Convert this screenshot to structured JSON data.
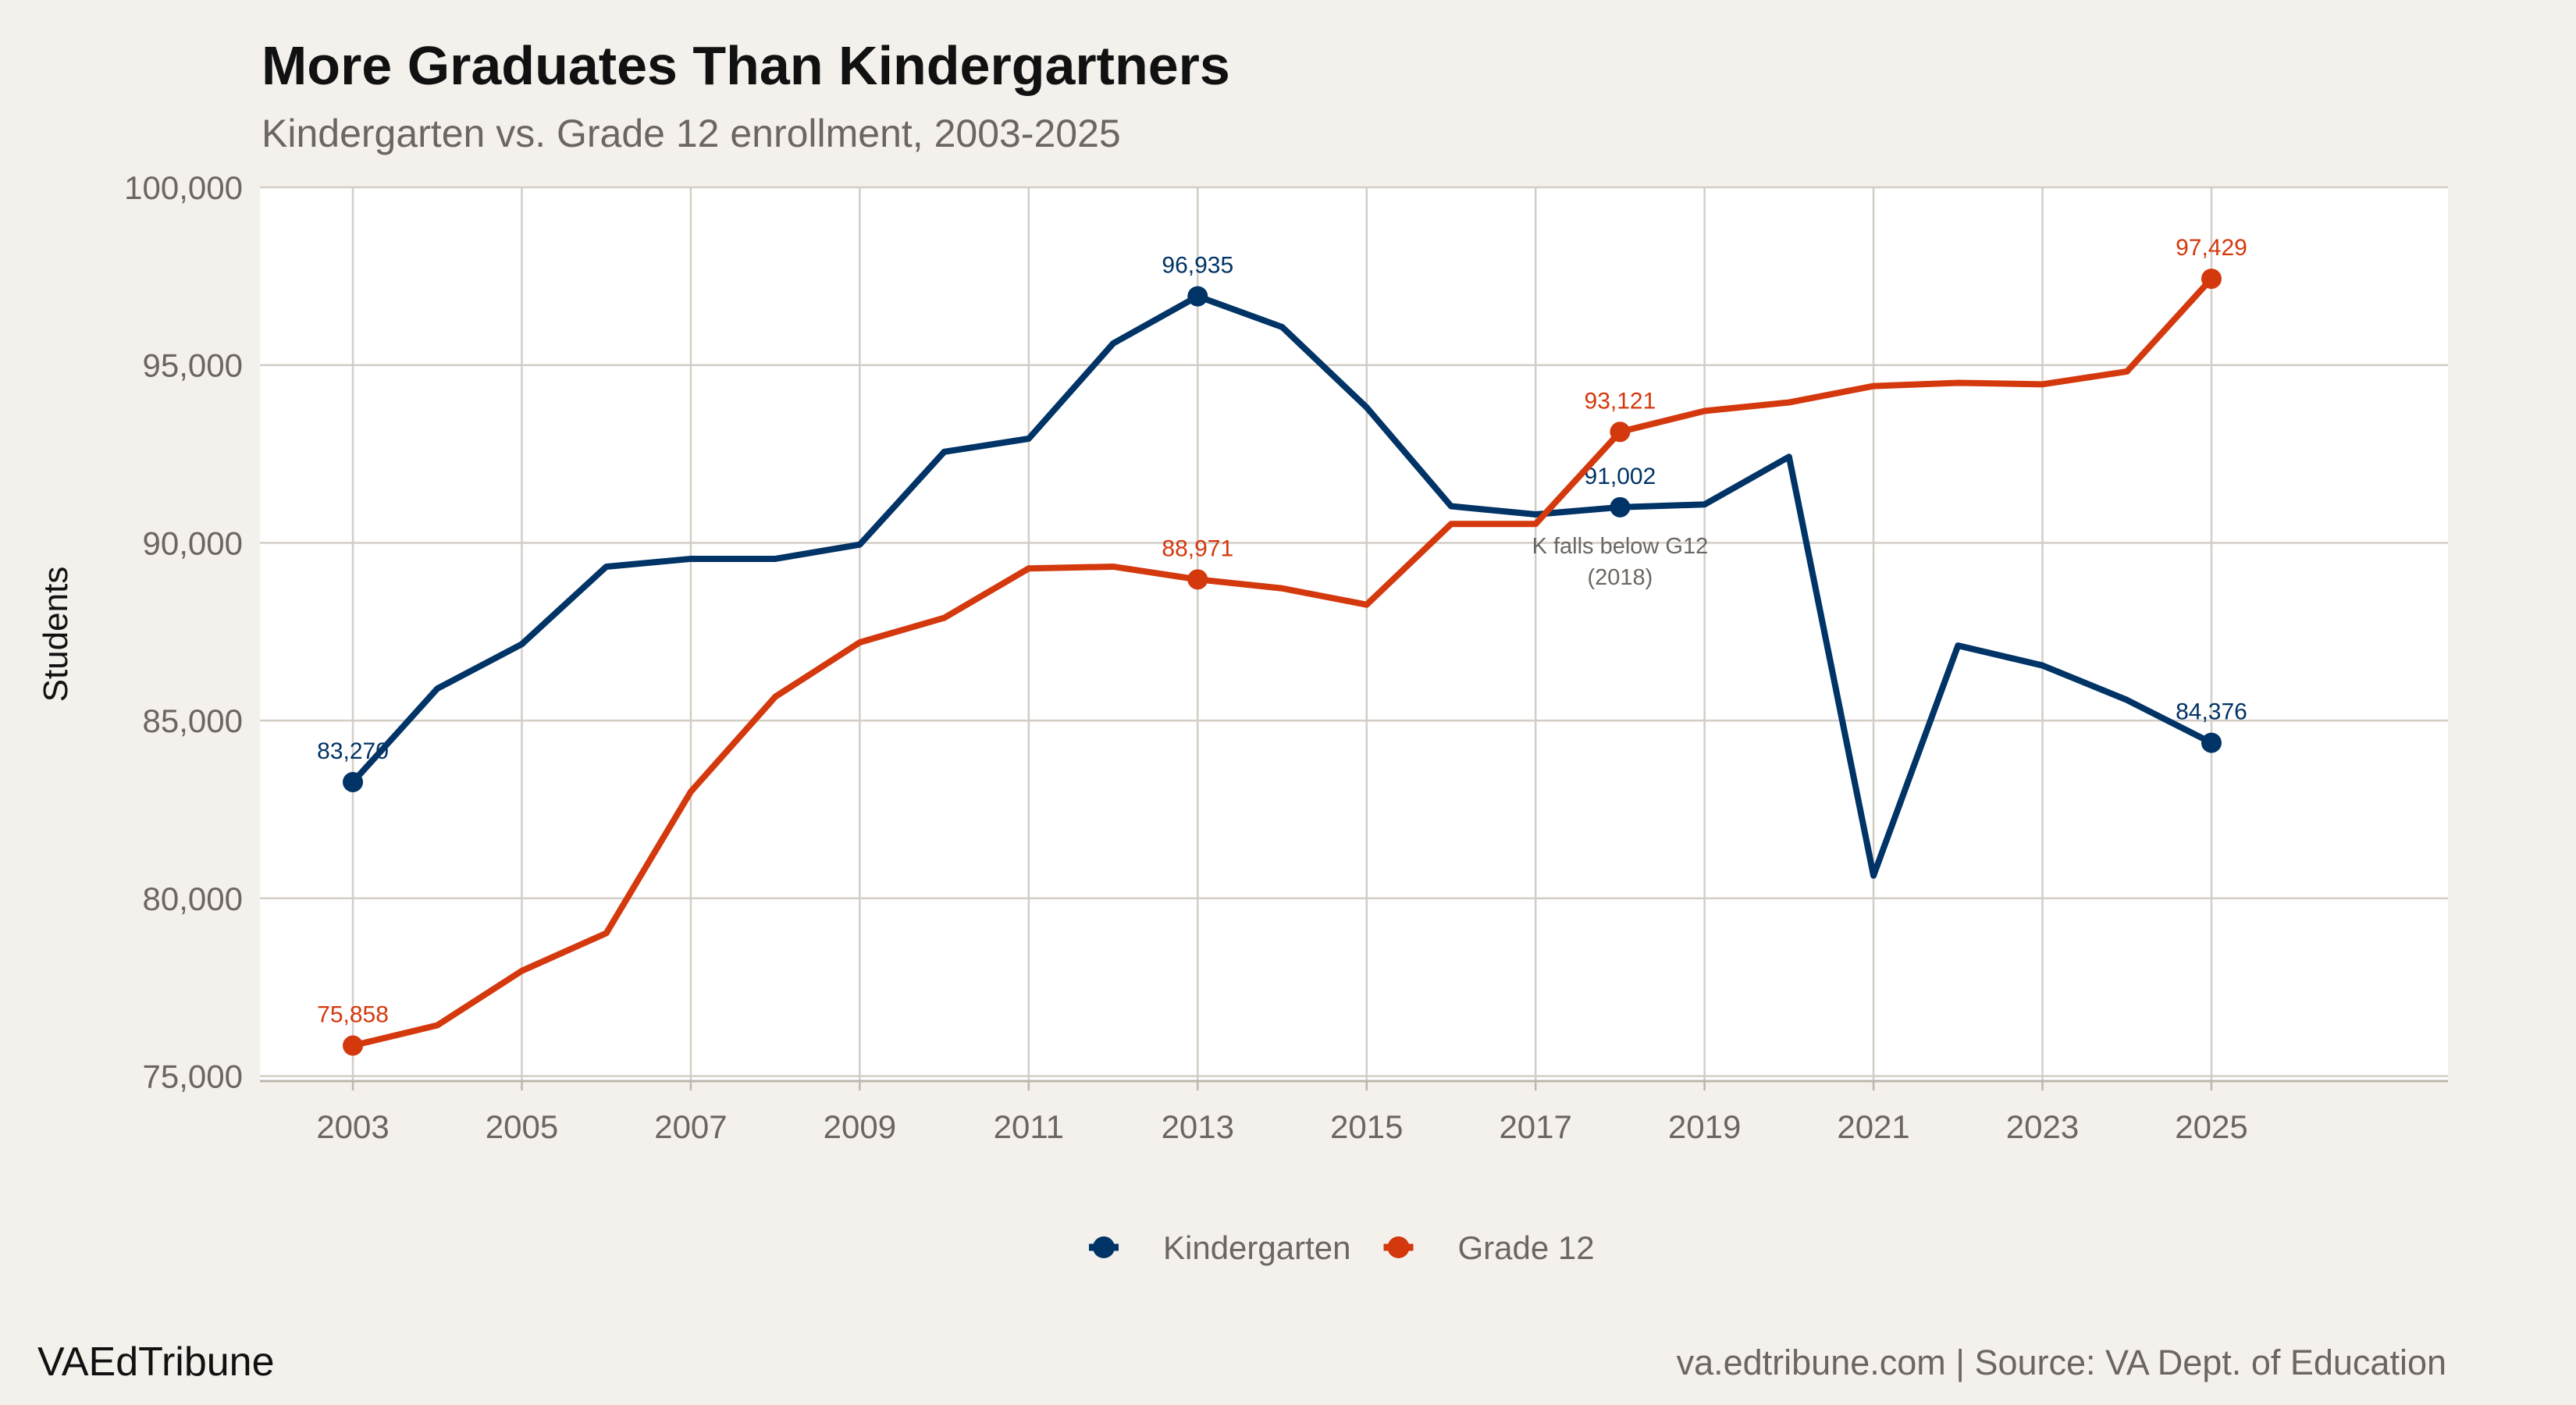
{
  "chart_data": {
    "type": "line",
    "title": "More Graduates Than Kindergartners",
    "subtitle": "Kindergarten vs. Grade 12 enrollment, 2003-2025",
    "xlabel": "",
    "ylabel": "Students",
    "xlim": [
      2001.9,
      2027.8
    ],
    "ylim": [
      74860,
      100000
    ],
    "xticks": [
      2003,
      2005,
      2007,
      2009,
      2011,
      2013,
      2015,
      2017,
      2019,
      2021,
      2023,
      2025
    ],
    "yticks": [
      75000,
      80000,
      85000,
      90000,
      95000,
      100000
    ],
    "ytick_labels": [
      "75,000",
      "80,000",
      "85,000",
      "90,000",
      "95,000",
      "100,000"
    ],
    "grid": true,
    "legend_position": "bottom",
    "x": [
      2003,
      2004,
      2005,
      2006,
      2007,
      2008,
      2009,
      2010,
      2011,
      2012,
      2013,
      2014,
      2015,
      2016,
      2017,
      2018,
      2019,
      2020,
      2021,
      2022,
      2023,
      2024,
      2025
    ],
    "series": [
      {
        "name": "Kindergarten",
        "color": "#003366",
        "values": [
          83270,
          85900,
          87150,
          89330,
          89550,
          89550,
          89950,
          92560,
          92930,
          95610,
          96935,
          96070,
          93810,
          91030,
          90800,
          91002,
          91080,
          92420,
          80640,
          87110,
          86550,
          85580,
          84376
        ],
        "labeled_points": [
          {
            "x": 2003,
            "label": "83,270"
          },
          {
            "x": 2013,
            "label": "96,935"
          },
          {
            "x": 2018,
            "label": "91,002"
          },
          {
            "x": 2025,
            "label": "84,376"
          }
        ]
      },
      {
        "name": "Grade 12",
        "color": "#d4380d",
        "values": [
          75858,
          76430,
          77960,
          79020,
          83000,
          85670,
          87200,
          87890,
          89280,
          89330,
          88971,
          88720,
          88260,
          90530,
          90530,
          93121,
          93710,
          93950,
          94410,
          94500,
          94460,
          94820,
          97429
        ],
        "labeled_points": [
          {
            "x": 2003,
            "label": "75,858"
          },
          {
            "x": 2013,
            "label": "88,971"
          },
          {
            "x": 2018,
            "label": "93,121"
          },
          {
            "x": 2025,
            "label": "97,429"
          }
        ]
      }
    ],
    "annotations": [
      {
        "x": 2018,
        "y": 89700,
        "lines": [
          "K falls below G12",
          "(2018)"
        ]
      }
    ]
  },
  "footer": {
    "brand": "VAEdTribune",
    "source": "va.edtribune.com | Source: VA Dept. of Education"
  }
}
